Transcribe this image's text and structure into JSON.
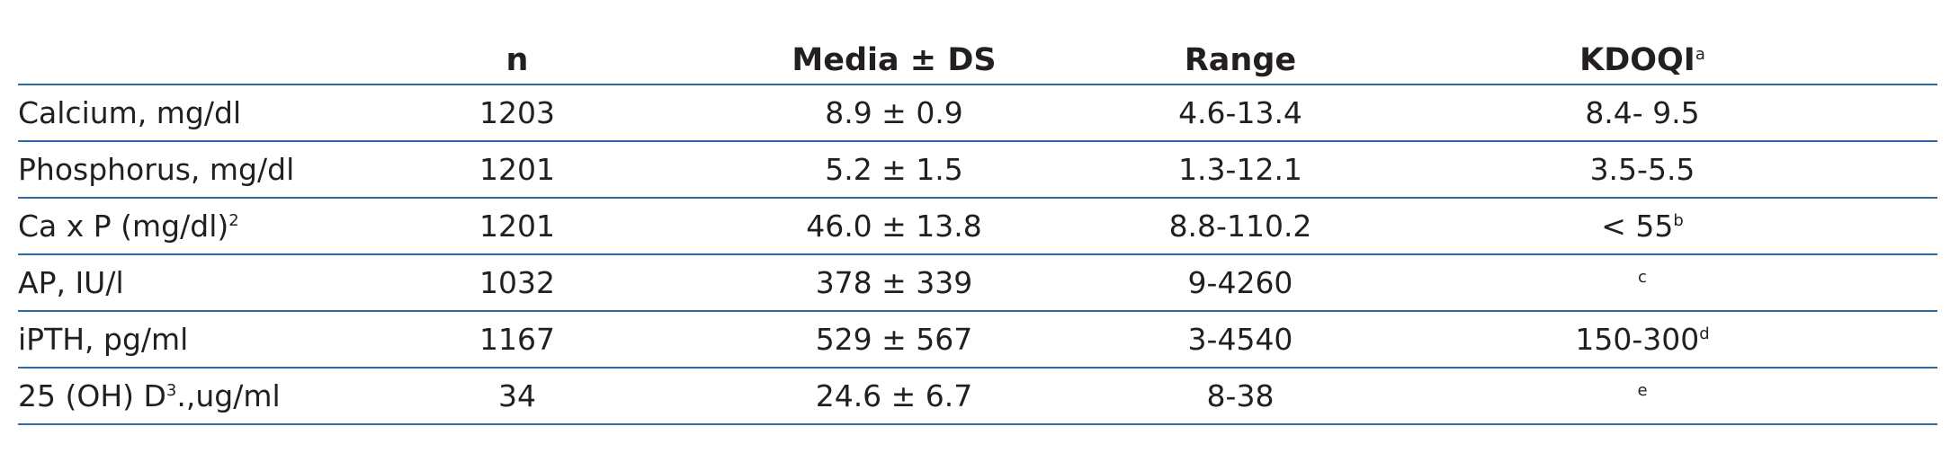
{
  "table": {
    "header": [
      "n",
      "Media ± DS",
      "Range",
      {
        "text": "KDOQI",
        "sup": "a"
      }
    ],
    "rows": [
      [
        "Calcium, mg/dl",
        "1203",
        "8.9 ± 0.9",
        "4.6-13.4",
        "8.4- 9.5"
      ],
      [
        "Phosphorus, mg/dl",
        "1201",
        "5.2 ± 1.5",
        "1.3-12.1",
        "3.5-5.5"
      ],
      [
        {
          "text": "Ca x P (mg/dl)",
          "sup": "2"
        },
        "1201",
        "46.0 ± 13.8",
        "8.8-110.2",
        {
          "text": "< 55",
          "sup": "b"
        }
      ],
      [
        "AP, IU/l",
        "1032",
        "378 ± 339",
        "9-4260",
        {
          "sup": "c"
        }
      ],
      [
        "iPTH, pg/ml",
        "1167",
        "529 ± 567",
        "3-4540",
        {
          "text": "150-300",
          "sup": "d"
        }
      ],
      [
        {
          "text": "25 (OH) D",
          "sup": "3",
          "after": ".,ug/ml"
        },
        "34",
        "24.6 ± 6.7",
        "8-38",
        {
          "sup": "e"
        }
      ]
    ]
  }
}
